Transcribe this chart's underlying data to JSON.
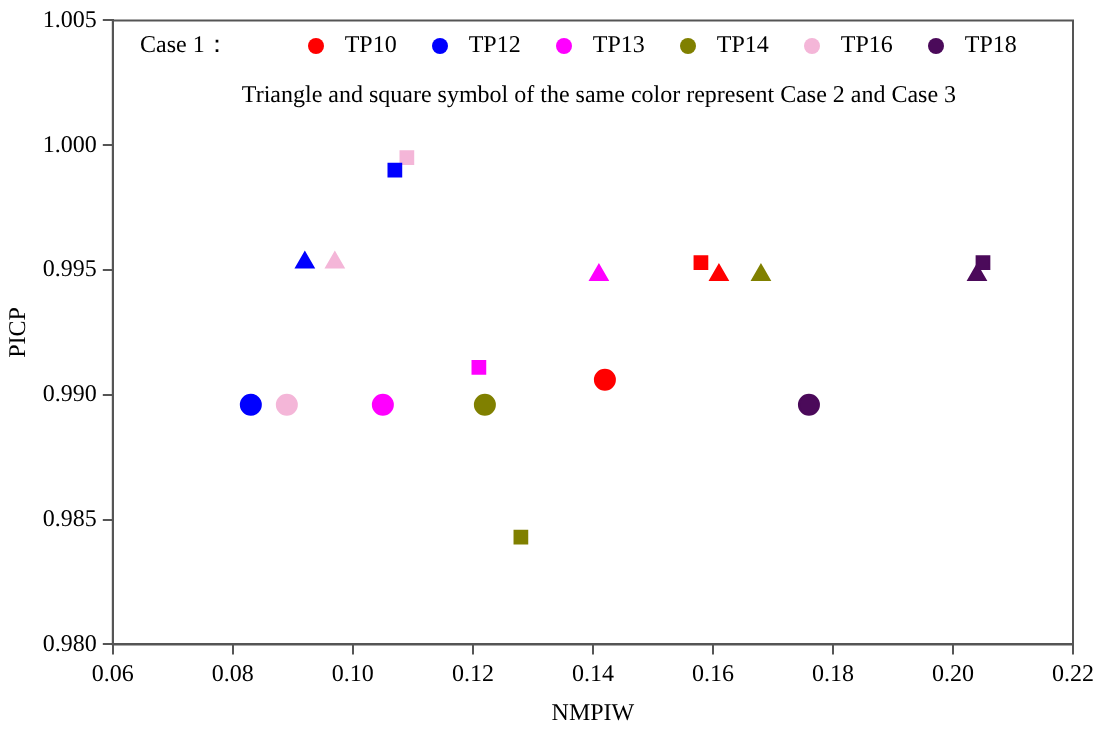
{
  "chart_data": {
    "type": "scatter",
    "xlabel": "NMPIW",
    "ylabel": "PICP",
    "legend_title": "Case 1：",
    "legend": "top",
    "grid": false,
    "xlim": [
      0.06,
      0.22
    ],
    "xticks": [
      {
        "value": 0.06,
        "label": "0.06"
      },
      {
        "value": 0.08,
        "label": "0.08"
      },
      {
        "value": 0.1,
        "label": "0.10"
      },
      {
        "value": 0.12,
        "label": "0.12"
      },
      {
        "value": 0.14,
        "label": "0.14"
      },
      {
        "value": 0.16,
        "label": "0.16"
      },
      {
        "value": 0.18,
        "label": "0.18"
      },
      {
        "value": 0.2,
        "label": "0.20"
      },
      {
        "value": 0.22,
        "label": "0.22"
      }
    ],
    "ylim": [
      0.98,
      1.005
    ],
    "yticks": [
      {
        "value": 0.98,
        "label": "0.980"
      },
      {
        "value": 0.985,
        "label": "0.985"
      },
      {
        "value": 0.99,
        "label": "0.990"
      },
      {
        "value": 0.995,
        "label": "0.995"
      },
      {
        "value": 1.0,
        "label": "1.000"
      },
      {
        "value": 1.005,
        "label": "1.005"
      }
    ],
    "annotations": [
      "Triangle and square symbol of the same color represent Case 2 and Case 3"
    ],
    "series": [
      {
        "name": "TP10",
        "color": "#ff0000",
        "marker": "circle",
        "x": [
          0.142
        ],
        "values": [
          0.9906
        ]
      },
      {
        "name": "TP12",
        "color": "#0000ff",
        "marker": "circle",
        "x": [
          0.083
        ],
        "values": [
          0.9896
        ]
      },
      {
        "name": "TP13",
        "color": "#ff00ff",
        "marker": "circle",
        "x": [
          0.105
        ],
        "values": [
          0.9896
        ]
      },
      {
        "name": "TP14",
        "color": "#808000",
        "marker": "circle",
        "x": [
          0.122
        ],
        "values": [
          0.9896
        ]
      },
      {
        "name": "TP16",
        "color": "#f4b6d8",
        "marker": "circle",
        "x": [
          0.089
        ],
        "values": [
          0.9896
        ]
      },
      {
        "name": "TP18",
        "color": "#4b0a5a",
        "marker": "circle",
        "x": [
          0.176
        ],
        "values": [
          0.9896
        ]
      },
      {
        "color": "#ff0000",
        "marker": "triangle",
        "x": [
          0.161
        ],
        "values": [
          0.9948
        ]
      },
      {
        "color": "#0000ff",
        "marker": "triangle",
        "x": [
          0.092
        ],
        "values": [
          0.9953
        ]
      },
      {
        "color": "#ff00ff",
        "marker": "triangle",
        "x": [
          0.141
        ],
        "values": [
          0.9948
        ]
      },
      {
        "color": "#808000",
        "marker": "triangle",
        "x": [
          0.168
        ],
        "values": [
          0.9948
        ]
      },
      {
        "color": "#f4b6d8",
        "marker": "triangle",
        "x": [
          0.097
        ],
        "values": [
          0.9953
        ]
      },
      {
        "color": "#4b0a5a",
        "marker": "triangle",
        "x": [
          0.204
        ],
        "values": [
          0.9948
        ]
      },
      {
        "color": "#ff0000",
        "marker": "square",
        "x": [
          0.158
        ],
        "values": [
          0.9953
        ]
      },
      {
        "color": "#0000ff",
        "marker": "square",
        "x": [
          0.107
        ],
        "values": [
          0.999
        ]
      },
      {
        "color": "#ff00ff",
        "marker": "square",
        "x": [
          0.121
        ],
        "values": [
          0.9911
        ]
      },
      {
        "color": "#808000",
        "marker": "square",
        "x": [
          0.128
        ],
        "values": [
          0.9843
        ]
      },
      {
        "color": "#f4b6d8",
        "marker": "square",
        "x": [
          0.109
        ],
        "values": [
          0.9995
        ]
      },
      {
        "color": "#4b0a5a",
        "marker": "square",
        "x": [
          0.205
        ],
        "values": [
          0.9953
        ]
      }
    ]
  }
}
